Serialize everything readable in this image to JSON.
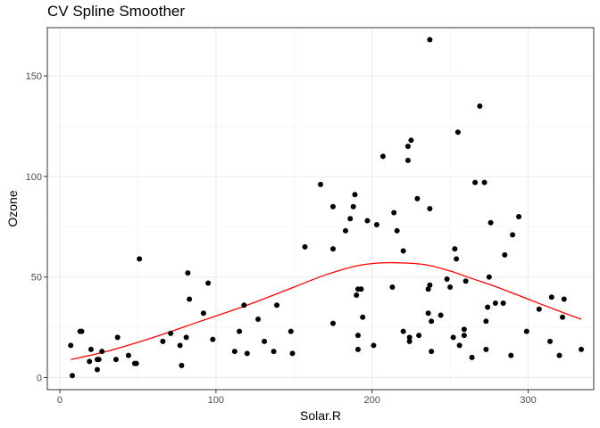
{
  "chart_data": {
    "type": "scatter",
    "title": "CV Spline Smoother",
    "xlabel": "Solar.R",
    "ylabel": "Ozone",
    "xlim": [
      -8,
      342
    ],
    "ylim": [
      -6,
      174
    ],
    "xticks": [
      0,
      100,
      200,
      300
    ],
    "yticks": [
      0,
      50,
      100,
      150
    ],
    "xtick_labels": [
      "0",
      "100",
      "200",
      "300"
    ],
    "ytick_labels": [
      "0",
      "50",
      "100",
      "150"
    ],
    "grid": true,
    "points": [
      [
        7,
        16
      ],
      [
        8,
        1
      ],
      [
        13,
        23
      ],
      [
        14,
        23
      ],
      [
        19,
        8
      ],
      [
        20,
        14
      ],
      [
        24,
        9
      ],
      [
        24,
        4
      ],
      [
        25,
        9
      ],
      [
        27,
        13
      ],
      [
        36,
        9
      ],
      [
        37,
        20
      ],
      [
        44,
        11
      ],
      [
        48,
        7
      ],
      [
        49,
        7
      ],
      [
        51,
        59
      ],
      [
        66,
        18
      ],
      [
        71,
        22
      ],
      [
        77,
        16
      ],
      [
        78,
        6
      ],
      [
        81,
        20
      ],
      [
        82,
        52
      ],
      [
        83,
        39
      ],
      [
        92,
        32
      ],
      [
        95,
        47
      ],
      [
        98,
        19
      ],
      [
        112,
        13
      ],
      [
        115,
        23
      ],
      [
        118,
        36
      ],
      [
        120,
        12
      ],
      [
        127,
        29
      ],
      [
        131,
        18
      ],
      [
        137,
        13
      ],
      [
        139,
        36
      ],
      [
        148,
        23
      ],
      [
        149,
        12
      ],
      [
        157,
        65
      ],
      [
        167,
        96
      ],
      [
        175,
        64
      ],
      [
        175,
        85
      ],
      [
        175,
        27
      ],
      [
        183,
        73
      ],
      [
        186,
        79
      ],
      [
        188,
        85
      ],
      [
        189,
        91
      ],
      [
        190,
        41
      ],
      [
        191,
        44
      ],
      [
        191,
        14
      ],
      [
        191,
        21
      ],
      [
        193,
        44
      ],
      [
        194,
        30
      ],
      [
        197,
        78
      ],
      [
        201,
        16
      ],
      [
        203,
        76
      ],
      [
        207,
        110
      ],
      [
        213,
        45
      ],
      [
        214,
        82
      ],
      [
        216,
        73
      ],
      [
        220,
        63
      ],
      [
        220,
        23
      ],
      [
        223,
        115
      ],
      [
        223,
        108
      ],
      [
        224,
        20
      ],
      [
        224,
        18
      ],
      [
        225,
        118
      ],
      [
        229,
        89
      ],
      [
        230,
        21
      ],
      [
        236,
        32
      ],
      [
        236,
        44
      ],
      [
        237,
        46
      ],
      [
        237,
        84
      ],
      [
        237,
        168
      ],
      [
        238,
        28
      ],
      [
        238,
        13
      ],
      [
        244,
        31
      ],
      [
        248,
        49
      ],
      [
        250,
        45
      ],
      [
        252,
        20
      ],
      [
        253,
        64
      ],
      [
        254,
        59
      ],
      [
        255,
        122
      ],
      [
        256,
        16
      ],
      [
        259,
        24
      ],
      [
        259,
        21
      ],
      [
        260,
        48
      ],
      [
        264,
        10
      ],
      [
        266,
        97
      ],
      [
        269,
        135
      ],
      [
        272,
        97
      ],
      [
        273,
        28
      ],
      [
        273,
        14
      ],
      [
        274,
        35
      ],
      [
        275,
        50
      ],
      [
        276,
        77
      ],
      [
        279,
        37
      ],
      [
        284,
        37
      ],
      [
        285,
        61
      ],
      [
        289,
        11
      ],
      [
        290,
        71
      ],
      [
        294,
        80
      ],
      [
        299,
        23
      ],
      [
        307,
        34
      ],
      [
        314,
        18
      ],
      [
        315,
        40
      ],
      [
        320,
        11
      ],
      [
        322,
        30
      ],
      [
        323,
        39
      ],
      [
        334,
        14
      ]
    ],
    "smoother": {
      "color": "#ff0000",
      "x": [
        7,
        30,
        60,
        90,
        120,
        150,
        170,
        190,
        205,
        220,
        235,
        250,
        265,
        280,
        300,
        320,
        334
      ],
      "y": [
        9,
        13,
        20,
        28,
        36,
        45,
        51,
        55.5,
        57,
        57,
        56,
        53,
        49,
        45,
        39,
        33,
        29
      ]
    }
  }
}
